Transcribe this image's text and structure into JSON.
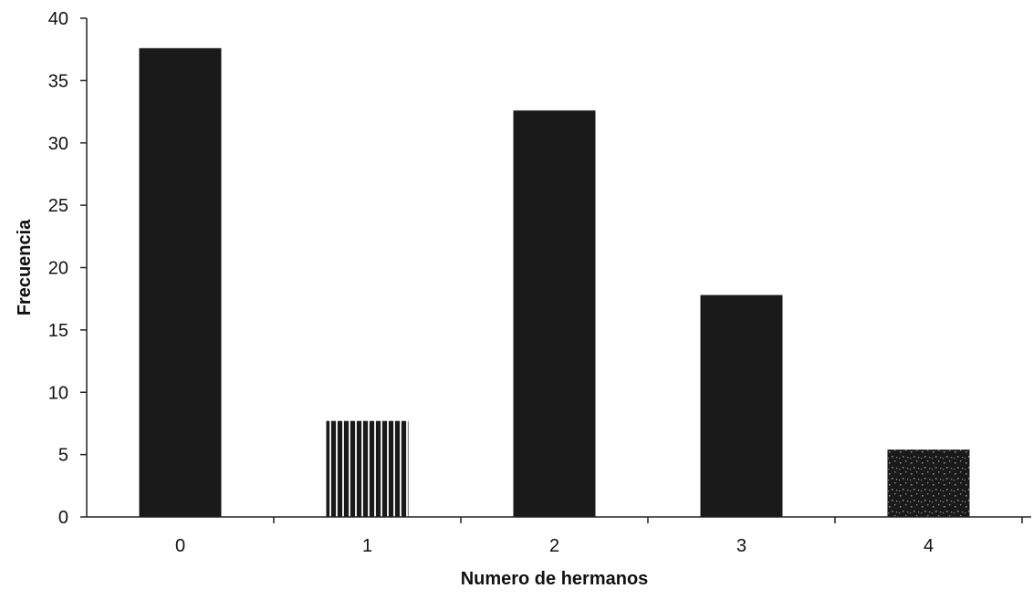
{
  "chart_data": {
    "type": "bar",
    "title": "",
    "xlabel": "Numero de hermanos",
    "ylabel": "Frecuencia",
    "categories": [
      "0",
      "1",
      "2",
      "3",
      "4"
    ],
    "values": [
      37.6,
      7.7,
      32.6,
      17.8,
      5.4
    ],
    "ylim": [
      0,
      40
    ],
    "yticks": [
      0,
      5,
      10,
      15,
      20,
      25,
      30,
      35,
      40
    ],
    "grid": false,
    "legend": "none",
    "bar_fills": [
      "solid",
      "vertical-stripes",
      "solid",
      "solid",
      "speckled"
    ],
    "colors": {
      "bar": "#1a1a1a",
      "stripe": "#e8e8e8",
      "speckle": "#8a8a8a",
      "axis": "#222222",
      "background": "#ffffff"
    }
  }
}
